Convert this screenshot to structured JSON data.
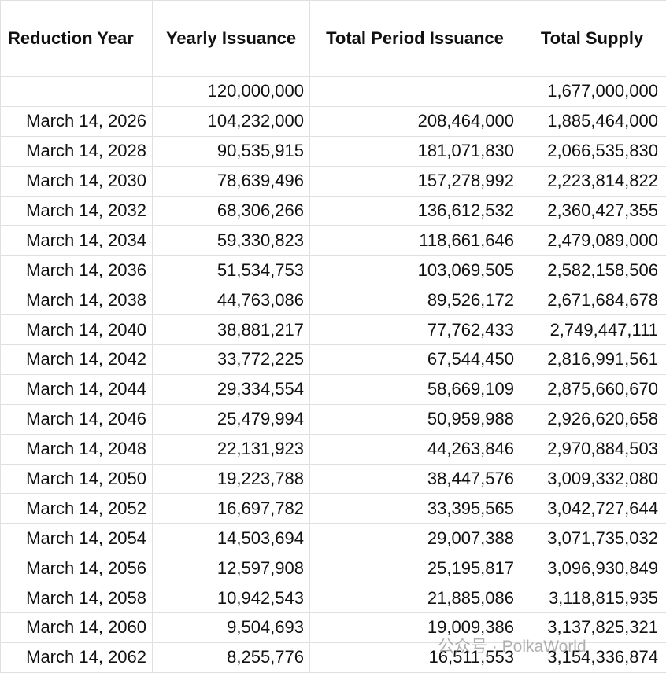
{
  "table": {
    "header": [
      "Reduction Year",
      "Yearly Issuance",
      "Total Period Issuance",
      "Total Supply"
    ],
    "rows": [
      [
        null,
        "120,000,000",
        null,
        "1,677,000,000"
      ],
      [
        "March 14, 2026",
        "104,232,000",
        "208,464,000",
        "1,885,464,000"
      ],
      [
        "March 14, 2028",
        "90,535,915",
        "181,071,830",
        "2,066,535,830"
      ],
      [
        "March 14, 2030",
        "78,639,496",
        "157,278,992",
        "2,223,814,822"
      ],
      [
        "March 14, 2032",
        "68,306,266",
        "136,612,532",
        "2,360,427,355"
      ],
      [
        "March 14, 2034",
        "59,330,823",
        "118,661,646",
        "2,479,089,000"
      ],
      [
        "March 14, 2036",
        "51,534,753",
        "103,069,505",
        "2,582,158,506"
      ],
      [
        "March 14, 2038",
        "44,763,086",
        "89,526,172",
        "2,671,684,678"
      ],
      [
        "March 14, 2040",
        "38,881,217",
        "77,762,433",
        "2,749,447,111"
      ],
      [
        "March 14, 2042",
        "33,772,225",
        "67,544,450",
        "2,816,991,561"
      ],
      [
        "March 14, 2044",
        "29,334,554",
        "58,669,109",
        "2,875,660,670"
      ],
      [
        "March 14, 2046",
        "25,479,994",
        "50,959,988",
        "2,926,620,658"
      ],
      [
        "March 14, 2048",
        "22,131,923",
        "44,263,846",
        "2,970,884,503"
      ],
      [
        "March 14, 2050",
        "19,223,788",
        "38,447,576",
        "3,009,332,080"
      ],
      [
        "March 14, 2052",
        "16,697,782",
        "33,395,565",
        "3,042,727,644"
      ],
      [
        "March 14, 2054",
        "14,503,694",
        "29,007,388",
        "3,071,735,032"
      ],
      [
        "March 14, 2056",
        "12,597,908",
        "25,195,817",
        "3,096,930,849"
      ],
      [
        "March 14, 2058",
        "10,942,543",
        "21,885,086",
        "3,118,815,935"
      ],
      [
        "March 14, 2060",
        "9,504,693",
        "19,009,386",
        "3,137,825,321"
      ],
      [
        "March 14, 2062",
        "8,255,776",
        "16,511,553",
        "3,154,336,874"
      ]
    ]
  },
  "watermark": "公众号 · PolkaWorld"
}
